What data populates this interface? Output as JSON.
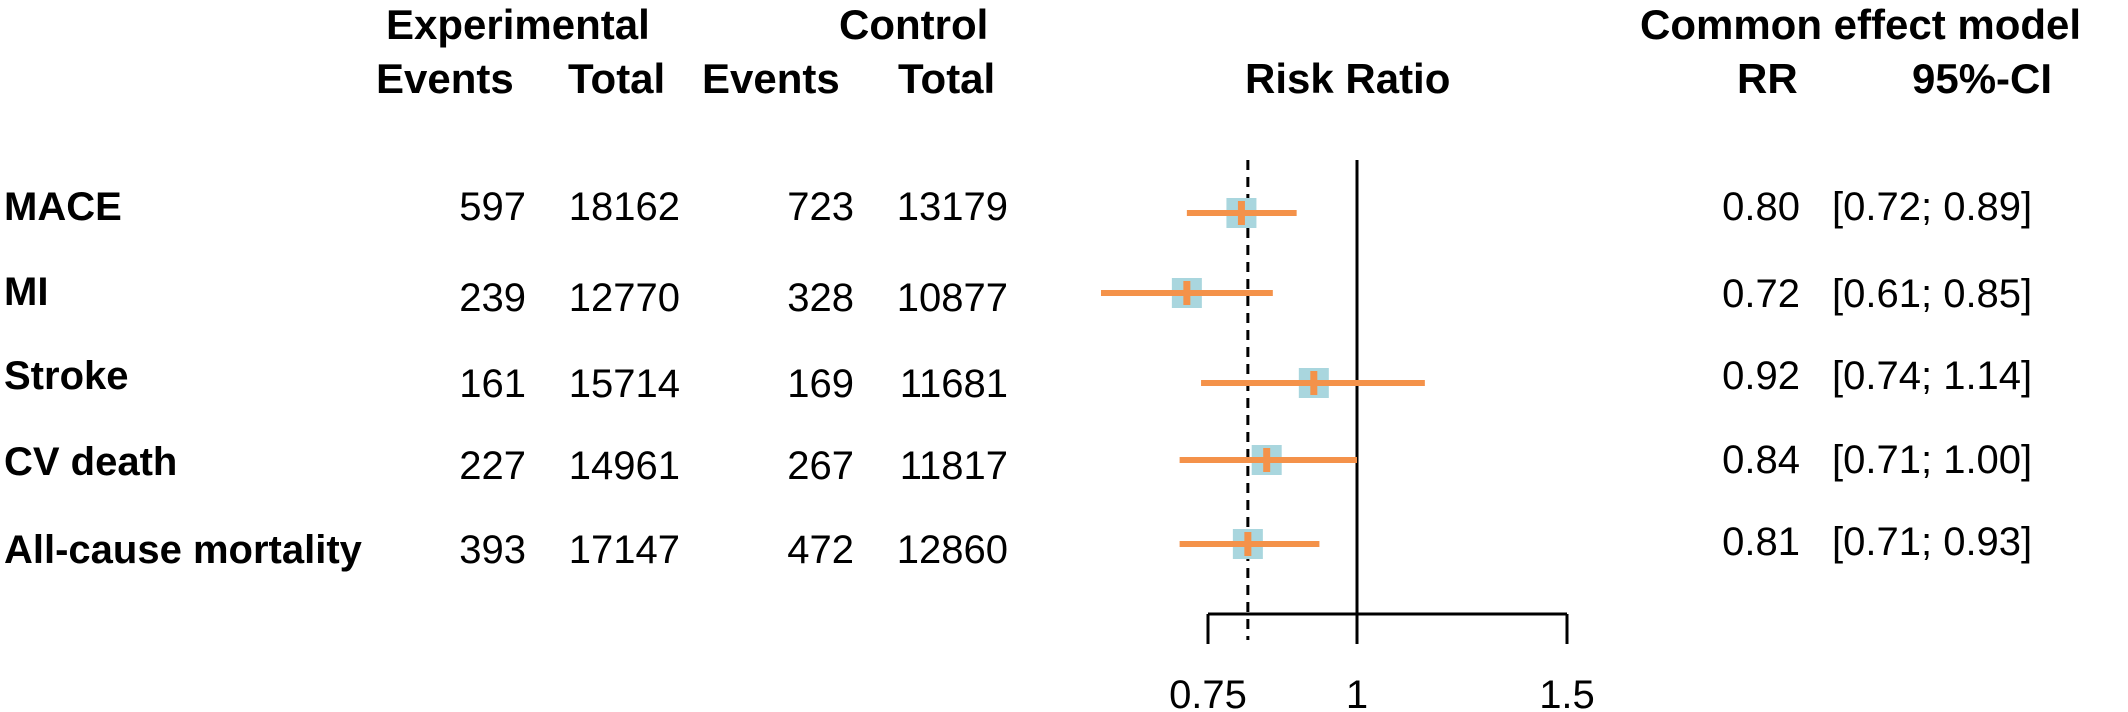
{
  "headers": {
    "experimental": "Experimental",
    "control": "Control",
    "events": "Events",
    "total": "Total",
    "risk_ratio": "Risk Ratio",
    "model": "Common effect model",
    "rr": "RR",
    "ci": "95%-CI"
  },
  "rows": [
    {
      "label": "MACE",
      "exp_events": "597",
      "exp_total": "18162",
      "ctrl_events": "723",
      "ctrl_total": "13179",
      "rr": "0.80",
      "ci": "[0.72; 0.89]"
    },
    {
      "label": "MI",
      "exp_events": "239",
      "exp_total": "12770",
      "ctrl_events": "328",
      "ctrl_total": "10877",
      "rr": "0.72",
      "ci": "[0.61; 0.85]"
    },
    {
      "label": "Stroke",
      "exp_events": "161",
      "exp_total": "15714",
      "ctrl_events": "169",
      "ctrl_total": "11681",
      "rr": "0.92",
      "ci": "[0.74; 1.14]"
    },
    {
      "label": "CV death",
      "exp_events": "227",
      "exp_total": "14961",
      "ctrl_events": "267",
      "ctrl_total": "11817",
      "rr": "0.84",
      "ci": "[0.71; 1.00]"
    },
    {
      "label": "All-cause mortality",
      "exp_events": "393",
      "exp_total": "17147",
      "ctrl_events": "472",
      "ctrl_total": "12860",
      "rr": "0.81",
      "ci": "[0.71; 0.93]"
    }
  ],
  "chart_data": {
    "type": "forest",
    "title": "Risk Ratio",
    "x_scale": "log",
    "xlim": [
      0.75,
      1.5
    ],
    "xticks": [
      0.75,
      1,
      1.5
    ],
    "xtick_labels": [
      "0.75",
      "1",
      "1.5"
    ],
    "reference_line": 1,
    "common_effect_line": 0.81,
    "series": [
      {
        "label": "MACE",
        "rr": 0.8,
        "lower": 0.72,
        "upper": 0.89
      },
      {
        "label": "MI",
        "rr": 0.72,
        "lower": 0.61,
        "upper": 0.85
      },
      {
        "label": "Stroke",
        "rr": 0.92,
        "lower": 0.74,
        "upper": 1.14
      },
      {
        "label": "CV death",
        "rr": 0.84,
        "lower": 0.71,
        "upper": 1.0
      },
      {
        "label": "All-cause mortality",
        "rr": 0.81,
        "lower": 0.71,
        "upper": 0.93
      }
    ],
    "colors": {
      "ci_line": "#f4924a",
      "box": "#a9d6de",
      "axis": "#000000"
    }
  }
}
